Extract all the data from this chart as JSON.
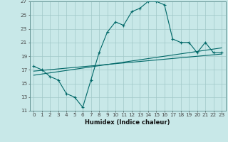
{
  "bg_color": "#c8e8e8",
  "grid_color": "#a0c8c8",
  "line_color": "#006868",
  "xlabel": "Humidex (Indice chaleur)",
  "xlim": [
    -0.5,
    23.5
  ],
  "ylim": [
    11,
    27
  ],
  "yticks": [
    11,
    13,
    15,
    17,
    19,
    21,
    23,
    25,
    27
  ],
  "xticks": [
    0,
    1,
    2,
    3,
    4,
    5,
    6,
    7,
    8,
    9,
    10,
    11,
    12,
    13,
    14,
    15,
    16,
    17,
    18,
    19,
    20,
    21,
    22,
    23
  ],
  "line1_x": [
    0,
    1,
    2,
    3,
    4,
    5,
    6,
    7,
    8,
    9,
    10,
    11,
    12,
    13,
    14,
    15,
    16,
    17,
    18,
    19,
    20,
    21,
    22,
    23
  ],
  "line1_y": [
    17.5,
    17.0,
    16.0,
    15.5,
    13.5,
    13.0,
    11.5,
    15.5,
    19.5,
    22.5,
    24.0,
    23.5,
    25.5,
    26.0,
    27.0,
    27.0,
    26.5,
    21.5,
    21.0,
    21.0,
    19.5,
    21.0,
    19.5,
    19.5
  ],
  "line2_x": [
    0,
    23
  ],
  "line2_y": [
    16.8,
    19.3
  ],
  "line3_x": [
    0,
    23
  ],
  "line3_y": [
    16.2,
    20.2
  ],
  "xlabel_fontsize": 6.0,
  "tick_fontsize": 5.2,
  "linewidth": 0.8,
  "markersize": 3.0
}
